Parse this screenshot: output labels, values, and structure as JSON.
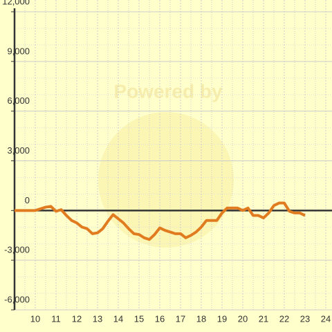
{
  "chart_data": {
    "type": "line",
    "watermark": "Powered by",
    "x": [
      9,
      9.25,
      9.5,
      9.75,
      10,
      10.25,
      10.5,
      10.75,
      11,
      11.25,
      11.5,
      11.75,
      12,
      12.25,
      12.5,
      12.75,
      13,
      13.25,
      13.5,
      13.75,
      14,
      14.25,
      14.5,
      14.75,
      15,
      15.25,
      15.5,
      15.75,
      16,
      16.25,
      16.5,
      16.75,
      17,
      17.25,
      17.5,
      17.75,
      18,
      18.25,
      18.5,
      18.75,
      19,
      19.25,
      19.5,
      19.75,
      20,
      20.25,
      20.5,
      20.75,
      21,
      21.25,
      21.5,
      21.75,
      22,
      22.25,
      22.5,
      22.75,
      23
    ],
    "series": [
      {
        "color": "#e07b20",
        "values": [
          0,
          0,
          0,
          0,
          0,
          100,
          200,
          250,
          -50,
          50,
          -300,
          -600,
          -750,
          -1000,
          -1100,
          -1400,
          -1350,
          -1100,
          -650,
          -250,
          -500,
          -750,
          -1100,
          -1400,
          -1450,
          -1650,
          -1750,
          -1450,
          -1050,
          -1200,
          -1300,
          -1400,
          -1400,
          -1650,
          -1500,
          -1300,
          -1000,
          -600,
          -600,
          -600,
          -150,
          150,
          150,
          150,
          0,
          150,
          -300,
          -300,
          -450,
          -150,
          300,
          450,
          450,
          -50,
          -150,
          -150,
          -300
        ]
      }
    ],
    "xlim": [
      9,
      24
    ],
    "xticks": [
      10,
      11,
      12,
      13,
      14,
      15,
      16,
      17,
      18,
      19,
      20,
      21,
      22,
      23,
      24
    ],
    "x_minor_grid": [
      9.5,
      10.5,
      11.5,
      12.5,
      13.5,
      14.5,
      15.5,
      16.5,
      17.5,
      18.5,
      19.5,
      20.5,
      21.5,
      22.5,
      23.5
    ],
    "ylim": [
      -6000,
      12000
    ],
    "yticks": [
      {
        "value": -6000,
        "label": "-6,000"
      },
      {
        "value": -3000,
        "label": "-3,000"
      },
      0,
      {
        "value": 3000,
        "label": "3,000"
      },
      {
        "value": 6000,
        "label": "6,000"
      },
      {
        "value": 9000,
        "label": "9,000"
      },
      {
        "value": 12000,
        "label": "12,000"
      }
    ],
    "y_minor_grid": [
      -5000,
      -4000,
      -2000,
      -1000,
      1000,
      2000,
      4000,
      5000,
      7000,
      8000,
      10000,
      11000
    ],
    "grid": true
  }
}
